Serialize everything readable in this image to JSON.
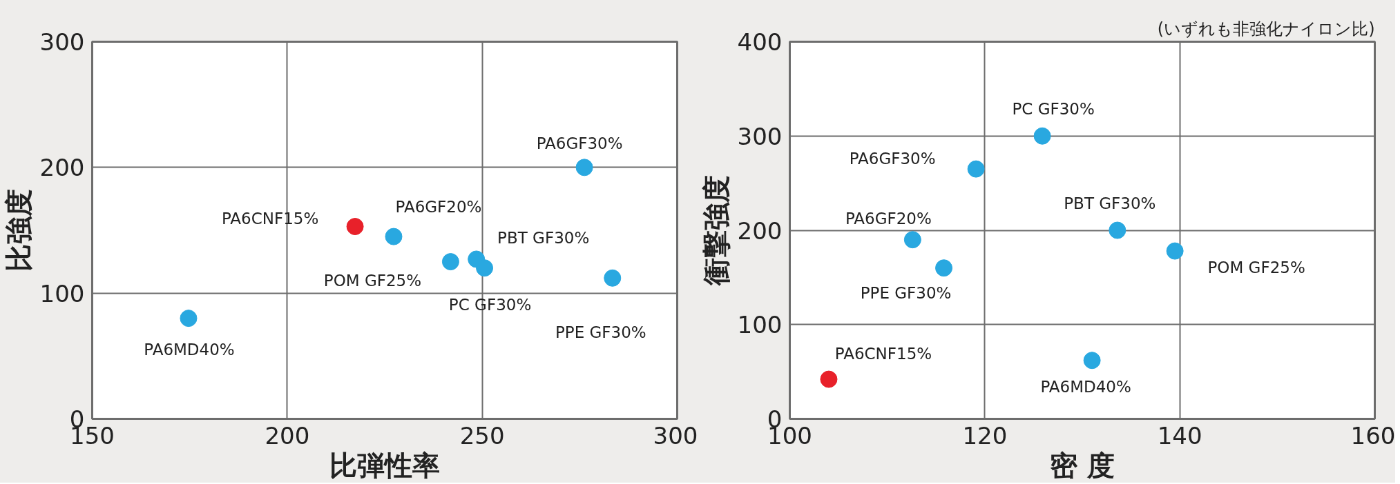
{
  "chart_data": [
    {
      "type": "scatter",
      "xlabel": "比弾性率",
      "ylabel": "比強度",
      "xlim": [
        150,
        300
      ],
      "ylim": [
        0,
        300
      ],
      "xticks": [
        150,
        200,
        250,
        300
      ],
      "yticks": [
        0,
        100,
        200,
        300
      ],
      "grid": true,
      "marker": "circle",
      "legend": false,
      "series": [
        {
          "name": "PA6CNF15%",
          "color": "#e8212a",
          "x": [
            217.4
          ],
          "values": [
            153
          ]
        },
        {
          "name": "PA6GF20%",
          "color": "#29a8e0",
          "x": [
            227.3
          ],
          "values": [
            145
          ]
        },
        {
          "name": "POM GF25%",
          "color": "#29a8e0",
          "x": [
            241.9
          ],
          "values": [
            125
          ]
        },
        {
          "name": "PBT GF30%",
          "color": "#29a8e0",
          "x": [
            248.5
          ],
          "values": [
            127
          ]
        },
        {
          "name": "PC GF30%",
          "color": "#29a8e0",
          "x": [
            250.6
          ],
          "values": [
            120
          ]
        },
        {
          "name": "PA6GF30%",
          "color": "#29a8e0",
          "x": [
            276.2
          ],
          "values": [
            200
          ]
        },
        {
          "name": "PPE GF30%",
          "color": "#29a8e0",
          "x": [
            283.4
          ],
          "values": [
            112
          ]
        },
        {
          "name": "PA6MD40%",
          "color": "#29a8e0",
          "x": [
            174.7
          ],
          "values": [
            80
          ]
        }
      ]
    },
    {
      "type": "scatter",
      "subtitle": "(いずれも非強化ナイロン比)",
      "xlabel": "密 度",
      "ylabel": "衝撃強度",
      "xlim": [
        100,
        160
      ],
      "ylim": [
        0,
        400
      ],
      "xticks": [
        100,
        120,
        140,
        160
      ],
      "yticks": [
        0,
        100,
        200,
        300,
        400
      ],
      "grid": true,
      "marker": "circle",
      "legend": false,
      "series": [
        {
          "name": "PA6CNF15%",
          "color": "#e8212a",
          "x": [
            104.0
          ],
          "values": [
            42
          ]
        },
        {
          "name": "PA6GF20%",
          "color": "#29a8e0",
          "x": [
            112.6
          ],
          "values": [
            190
          ]
        },
        {
          "name": "POM GF25%",
          "color": "#29a8e0",
          "x": [
            139.5
          ],
          "values": [
            178
          ]
        },
        {
          "name": "PBT GF30%",
          "color": "#29a8e0",
          "x": [
            133.6
          ],
          "values": [
            200
          ]
        },
        {
          "name": "PC GF30%",
          "color": "#29a8e0",
          "x": [
            125.9
          ],
          "values": [
            300
          ]
        },
        {
          "name": "PA6GF30%",
          "color": "#29a8e0",
          "x": [
            119.1
          ],
          "values": [
            265
          ]
        },
        {
          "name": "PPE GF30%",
          "color": "#29a8e0",
          "x": [
            115.8
          ],
          "values": [
            160
          ]
        },
        {
          "name": "PA6MD40%",
          "color": "#29a8e0",
          "x": [
            131.0
          ],
          "values": [
            62
          ]
        }
      ]
    }
  ]
}
